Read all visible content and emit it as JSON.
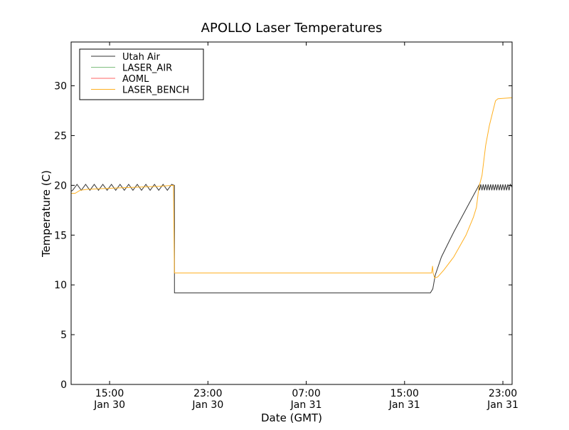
{
  "chart_data": {
    "type": "line",
    "title": "APOLLO Laser Temperatures",
    "xlabel": "Date (GMT)",
    "ylabel": "Temperature (C)",
    "x_units": "hours since Jan 30 00:00 GMT",
    "xlim": [
      11.87,
      47.75
    ],
    "ylim": [
      0,
      34.4
    ],
    "grid": false,
    "legend_position": "top-left",
    "x_ticks": [
      {
        "value": 15,
        "label1": "15:00",
        "label2": "Jan 30"
      },
      {
        "value": 23,
        "label1": "23:00",
        "label2": "Jan 30"
      },
      {
        "value": 31,
        "label1": "07:00",
        "label2": "Jan 31"
      },
      {
        "value": 39,
        "label1": "15:00",
        "label2": "Jan 31"
      },
      {
        "value": 47,
        "label1": "23:00",
        "label2": "Jan 31"
      }
    ],
    "y_ticks": [
      0,
      5,
      10,
      15,
      20,
      25,
      30
    ],
    "series": [
      {
        "name": "Utah Air",
        "color": "#333333",
        "points": [
          [
            11.87,
            19.4
          ],
          [
            12.0,
            19.5
          ],
          [
            12.35,
            20.1
          ],
          [
            12.7,
            19.5
          ],
          [
            13.05,
            20.1
          ],
          [
            13.4,
            19.5
          ],
          [
            13.75,
            20.1
          ],
          [
            14.1,
            19.5
          ],
          [
            14.45,
            20.1
          ],
          [
            14.8,
            19.5
          ],
          [
            15.15,
            20.1
          ],
          [
            15.5,
            19.5
          ],
          [
            15.85,
            20.1
          ],
          [
            16.2,
            19.5
          ],
          [
            16.55,
            20.1
          ],
          [
            16.9,
            19.5
          ],
          [
            17.25,
            20.1
          ],
          [
            17.6,
            19.5
          ],
          [
            17.95,
            20.1
          ],
          [
            18.3,
            19.5
          ],
          [
            18.65,
            20.1
          ],
          [
            19.0,
            19.5
          ],
          [
            19.35,
            20.1
          ],
          [
            19.7,
            19.5
          ],
          [
            20.05,
            20.1
          ],
          [
            20.27,
            20.0
          ],
          [
            20.28,
            9.2
          ],
          [
            41.1,
            9.2
          ],
          [
            41.3,
            9.6
          ],
          [
            41.5,
            11.0
          ],
          [
            42.0,
            12.8
          ],
          [
            43.0,
            15.3
          ],
          [
            44.0,
            17.6
          ],
          [
            45.05,
            20.0
          ],
          [
            45.1,
            19.5
          ],
          [
            45.2,
            20.1
          ],
          [
            45.3,
            19.5
          ],
          [
            45.4,
            20.1
          ],
          [
            45.5,
            19.5
          ],
          [
            45.6,
            20.1
          ],
          [
            45.7,
            19.5
          ],
          [
            45.8,
            20.1
          ],
          [
            45.9,
            19.5
          ],
          [
            46.0,
            20.1
          ],
          [
            46.1,
            19.5
          ],
          [
            46.2,
            20.1
          ],
          [
            46.3,
            19.5
          ],
          [
            46.4,
            20.1
          ],
          [
            46.5,
            19.5
          ],
          [
            46.6,
            20.1
          ],
          [
            46.7,
            19.5
          ],
          [
            46.8,
            20.1
          ],
          [
            46.9,
            19.5
          ],
          [
            47.0,
            20.1
          ],
          [
            47.1,
            19.5
          ],
          [
            47.2,
            20.1
          ],
          [
            47.3,
            19.5
          ],
          [
            47.4,
            20.1
          ],
          [
            47.5,
            19.5
          ],
          [
            47.6,
            20.1
          ],
          [
            47.75,
            19.8
          ]
        ]
      },
      {
        "name": "LASER_AIR",
        "color": "#7fbf7f",
        "points": []
      },
      {
        "name": "AOML",
        "color": "#ff6666",
        "points": []
      },
      {
        "name": "LASER_BENCH",
        "color": "#ffb020",
        "points": [
          [
            11.87,
            19.2
          ],
          [
            12.2,
            19.2
          ],
          [
            12.6,
            19.5
          ],
          [
            13.2,
            19.6
          ],
          [
            14.0,
            19.65
          ],
          [
            15.0,
            19.7
          ],
          [
            16.0,
            19.75
          ],
          [
            17.0,
            19.8
          ],
          [
            18.0,
            19.85
          ],
          [
            19.0,
            19.9
          ],
          [
            20.2,
            20.0
          ],
          [
            20.27,
            11.2
          ],
          [
            41.2,
            11.2
          ],
          [
            41.28,
            11.9
          ],
          [
            41.32,
            11.2
          ],
          [
            41.45,
            10.7
          ],
          [
            41.7,
            10.8
          ],
          [
            42.2,
            11.5
          ],
          [
            43.0,
            12.8
          ],
          [
            44.0,
            15.0
          ],
          [
            44.6,
            16.8
          ],
          [
            44.85,
            17.8
          ],
          [
            45.05,
            19.8
          ],
          [
            45.3,
            21.0
          ],
          [
            45.6,
            24.0
          ],
          [
            45.9,
            26.0
          ],
          [
            46.2,
            27.5
          ],
          [
            46.4,
            28.5
          ],
          [
            46.6,
            28.7
          ],
          [
            47.75,
            28.8
          ]
        ]
      }
    ]
  }
}
